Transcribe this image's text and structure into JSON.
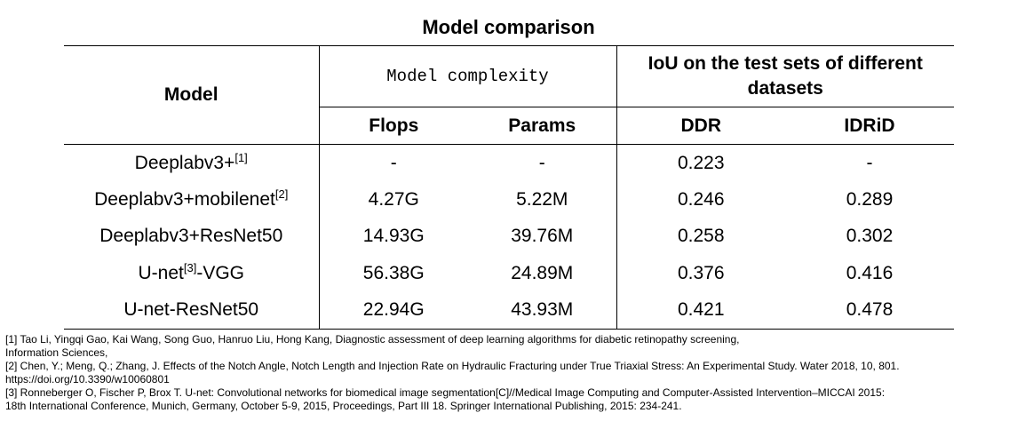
{
  "title": "Model comparison",
  "table": {
    "header": {
      "model": "Model",
      "complexity_group": "Model complexity",
      "iou_group": "IoU on the test sets of different datasets",
      "flops": "Flops",
      "params": "Params",
      "ddr": "DDR",
      "idrid": "IDRiD"
    },
    "rows": [
      {
        "name": "Deeplabv3+",
        "ref": "[1]",
        "suffix": "",
        "flops": "-",
        "params": "-",
        "ddr": "0.223",
        "idrid": "-"
      },
      {
        "name": "Deeplabv3+mobilenet",
        "ref": "[2]",
        "suffix": "",
        "flops": "4.27G",
        "params": "5.22M",
        "ddr": "0.246",
        "idrid": "0.289"
      },
      {
        "name": "Deeplabv3+ResNet50",
        "ref": "",
        "suffix": "",
        "flops": "14.93G",
        "params": "39.76M",
        "ddr": "0.258",
        "idrid": "0.302"
      },
      {
        "name": "U-net",
        "ref": "[3]",
        "suffix": "-VGG",
        "flops": "56.38G",
        "params": "24.89M",
        "ddr": "0.376",
        "idrid": "0.416"
      },
      {
        "name": "U-net-ResNet50",
        "ref": "",
        "suffix": "",
        "flops": "22.94G",
        "params": "43.93M",
        "ddr": "0.421",
        "idrid": "0.478"
      }
    ]
  },
  "references": [
    {
      "line1": "[1] Tao Li, Yingqi Gao, Kai Wang, Song Guo, Hanruo Liu, Hong Kang, Diagnostic assessment of deep learning algorithms for diabetic retinopathy screening,",
      "line2": "Information Sciences,"
    },
    {
      "line1": "[2] Chen, Y.; Meng, Q.; Zhang, J. Effects of the Notch Angle, Notch Length and Injection Rate on Hydraulic Fracturing under True Triaxial Stress: An Experimental Study. Water 2018, 10, 801.",
      "line2": "https://doi.org/10.3390/w10060801"
    },
    {
      "line1": "[3] Ronneberger O, Fischer P, Brox T. U-net: Convolutional networks for biomedical image segmentation[C]//Medical Image Computing and Computer-Assisted Intervention–MICCAI 2015:",
      "line2": "18th International Conference, Munich, Germany, October 5-9, 2015, Proceedings, Part III 18. Springer International Publishing, 2015: 234-241."
    }
  ]
}
